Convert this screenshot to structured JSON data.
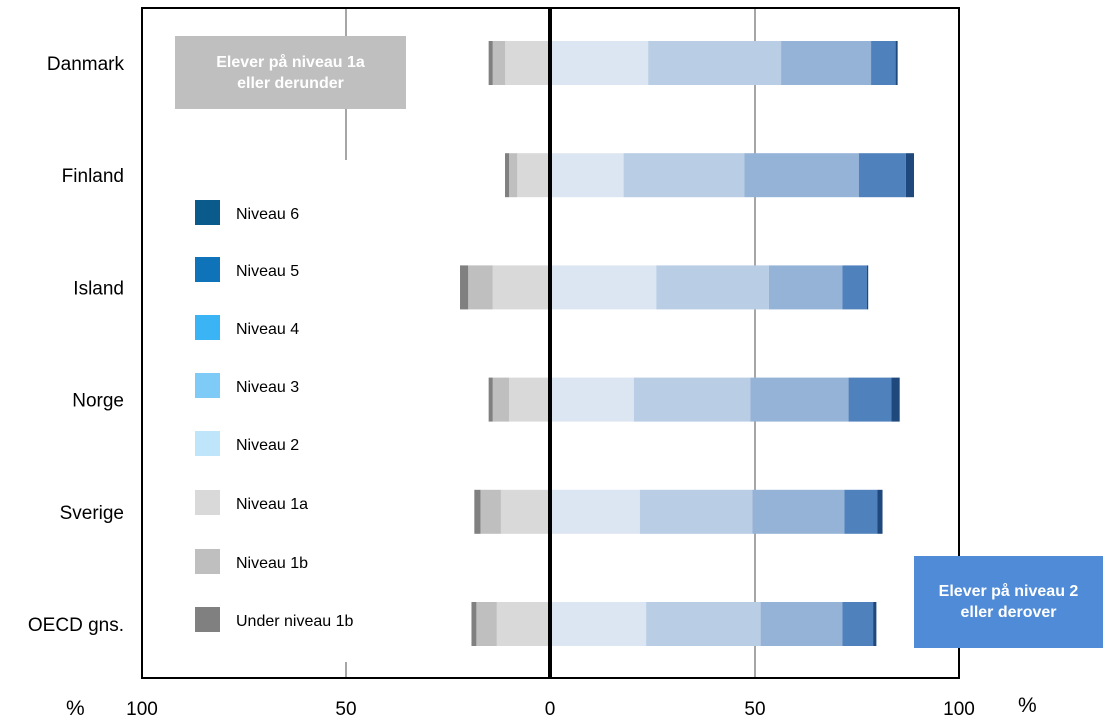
{
  "chart_data": {
    "type": "bar",
    "orientation": "horizontal-diverging",
    "categories": [
      "Danmark",
      "Finland",
      "Island",
      "Norge",
      "Sverige",
      "OECD gns."
    ],
    "xlim": [
      -100,
      100
    ],
    "xticks": [
      "100",
      "50",
      "0",
      "50",
      "100"
    ],
    "xunit_left": "%",
    "xunit_right": "%",
    "grid": true,
    "series_negative": [
      {
        "name": "Niveau 1a",
        "color": "#d9d9d9",
        "values": [
          11,
          8,
          14,
          10,
          12,
          13
        ]
      },
      {
        "name": "Niveau 1b",
        "color": "#bfbfbf",
        "values": [
          3,
          2,
          6,
          4,
          5,
          5
        ]
      },
      {
        "name": "Under niveau 1b",
        "color": "#808080",
        "values": [
          1,
          1,
          2,
          1,
          1.5,
          1.2
        ]
      }
    ],
    "series_positive": [
      {
        "name": "Niveau 2",
        "color": "#dce5f2",
        "values": [
          24,
          18,
          26,
          20.5,
          22,
          23.5
        ]
      },
      {
        "name": "Niveau 3",
        "color": "#b9cde5",
        "values": [
          32.5,
          29.5,
          27.5,
          28.5,
          27.5,
          28
        ]
      },
      {
        "name": "Niveau 4",
        "color": "#95b3d7",
        "values": [
          22,
          28,
          18,
          24,
          22.5,
          20
        ]
      },
      {
        "name": "Niveau 5",
        "color": "#4f81bd",
        "values": [
          6,
          11.5,
          6,
          10.5,
          8,
          7.5
        ]
      },
      {
        "name": "Niveau 6",
        "color": "#1f497d",
        "values": [
          0.5,
          2,
          0.3,
          2,
          1.3,
          0.8
        ]
      }
    ],
    "legend": {
      "placement": "left-inside",
      "items": [
        {
          "label": "Niveau 6",
          "color": "#0a5a8c"
        },
        {
          "label": "Niveau 5",
          "color": "#0e73b8"
        },
        {
          "label": "Niveau 4",
          "color": "#3ab4f5"
        },
        {
          "label": "Niveau 3",
          "color": "#7fcbf7"
        },
        {
          "label": "Niveau 2",
          "color": "#bfe5fb"
        },
        {
          "label": "Niveau 1a",
          "color": "#d9d9d9"
        },
        {
          "label": "Niveau 1b",
          "color": "#bfbfbf"
        },
        {
          "label": "Under niveau 1b",
          "color": "#808080"
        }
      ]
    },
    "annotations": {
      "left": "Elever på niveau 1a eller derunder",
      "right": "Elever på niveau 2 eller derover"
    }
  }
}
